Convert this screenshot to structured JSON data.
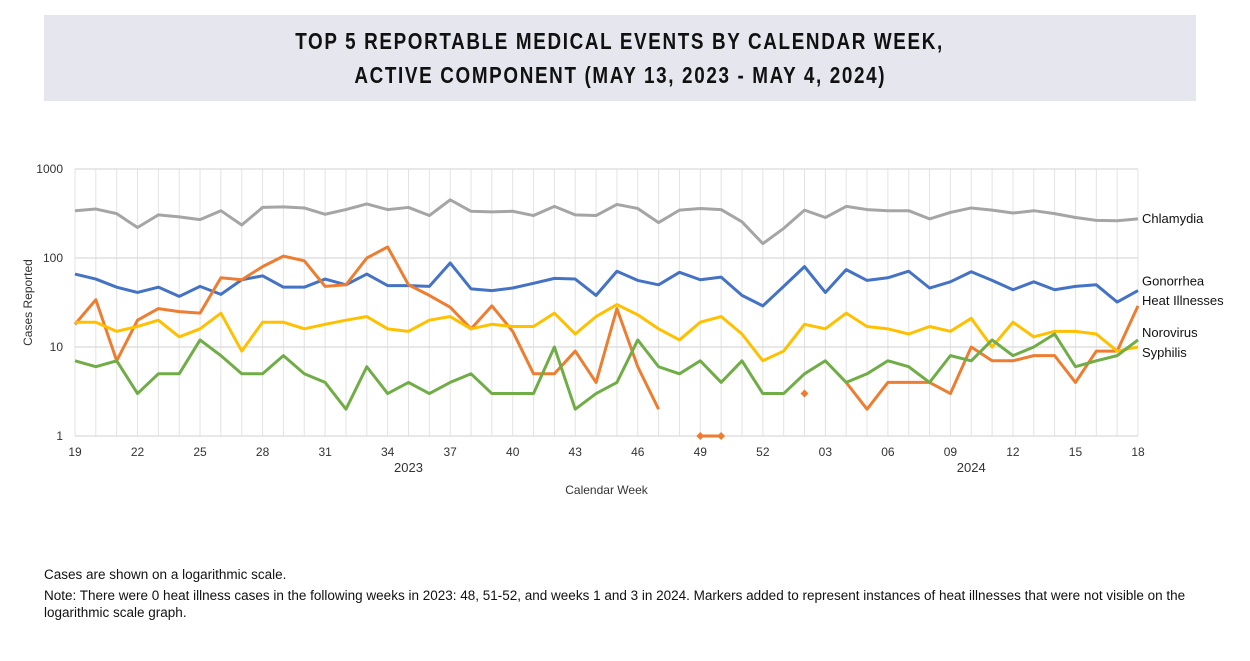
{
  "title": {
    "line1": "TOP 5 REPORTABLE MEDICAL EVENTS BY CALENDAR WEEK,",
    "line2": "ACTIVE COMPONENT (MAY 13, 2023 - MAY 4, 2024)"
  },
  "notes": {
    "scale": "Cases are shown on a logarithmic scale.",
    "zero": "Note: There were 0 heat illness cases in the following weeks in 2023: 48, 51-52, and weeks 1 and 3 in 2024. Markers added to represent instances of heat illnesses that were not visible on the logarithmic scale graph."
  },
  "chart_data": {
    "type": "line",
    "xlabel": "Calendar Week",
    "ylabel": "Cases Reported",
    "yscale": "log",
    "ylim": [
      1,
      1000
    ],
    "yticks": [
      "1",
      "10",
      "100",
      "1000"
    ],
    "grid": true,
    "legend": "right, labels at line ends",
    "weeks": [
      "19",
      "20",
      "21",
      "22",
      "23",
      "24",
      "25",
      "26",
      "27",
      "28",
      "29",
      "30",
      "31",
      "32",
      "33",
      "34",
      "35",
      "36",
      "37",
      "38",
      "39",
      "40",
      "41",
      "42",
      "43",
      "44",
      "45",
      "46",
      "47",
      "48",
      "49",
      "50",
      "51",
      "52",
      "01",
      "02",
      "03",
      "04",
      "05",
      "06",
      "07",
      "08",
      "09",
      "10",
      "11",
      "12",
      "13",
      "14",
      "15",
      "16",
      "17",
      "18"
    ],
    "xtick_labels": [
      "19",
      "22",
      "25",
      "28",
      "31",
      "34",
      "37",
      "40",
      "43",
      "46",
      "49",
      "52",
      "03",
      "06",
      "09",
      "12",
      "15",
      "18"
    ],
    "year_labels": [
      {
        "label": "2023",
        "week": "35"
      },
      {
        "label": "2024",
        "week": "10"
      }
    ],
    "series": [
      {
        "name": "Chlamydia",
        "color": "#a5a5a5",
        "values": [
          340,
          355,
          315,
          220,
          305,
          290,
          270,
          340,
          235,
          370,
          375,
          365,
          310,
          350,
          405,
          350,
          370,
          300,
          450,
          335,
          330,
          335,
          300,
          380,
          305,
          300,
          400,
          360,
          250,
          345,
          360,
          350,
          255,
          145,
          215,
          345,
          285,
          380,
          350,
          340,
          340,
          275,
          325,
          365,
          345,
          320,
          340,
          315,
          285,
          265,
          262,
          275
        ]
      },
      {
        "name": "Gonorrhea",
        "color": "#4472c4",
        "values": [
          66,
          58,
          47,
          41,
          47,
          37,
          48,
          39,
          57,
          63,
          47,
          47,
          58,
          50,
          66,
          49,
          49,
          48,
          88,
          45,
          43,
          46,
          52,
          59,
          58,
          38,
          71,
          56,
          50,
          69,
          57,
          61,
          38,
          29,
          48,
          80,
          41,
          74,
          56,
          60,
          71,
          46,
          54,
          70,
          56,
          44,
          54,
          44,
          48,
          50,
          32,
          43
        ]
      },
      {
        "name": "Heat Illnesses",
        "color": "#ed7d31",
        "values": [
          18,
          34,
          7,
          20,
          27,
          25,
          24,
          60,
          57,
          80,
          105,
          93,
          48,
          50,
          100,
          133,
          50,
          38,
          28,
          16,
          29,
          15,
          5,
          5,
          9,
          4,
          27,
          6,
          2,
          null,
          1,
          1,
          null,
          null,
          null,
          3,
          null,
          4,
          2,
          4,
          4,
          4,
          3,
          10,
          7,
          7,
          8,
          8,
          4,
          9,
          9,
          29
        ],
        "markers": [
          "49",
          "50",
          "02"
        ]
      },
      {
        "name": "Norovirus",
        "color": "#ffc000",
        "values": [
          19,
          19,
          15,
          17,
          20,
          13,
          16,
          24,
          9,
          19,
          19,
          16,
          18,
          20,
          22,
          16,
          15,
          20,
          22,
          16,
          18,
          17,
          17,
          24,
          14,
          22,
          30,
          23,
          16,
          12,
          19,
          22,
          14,
          7,
          9,
          18,
          16,
          24,
          17,
          16,
          14,
          17,
          15,
          21,
          10,
          19,
          13,
          15,
          15,
          14,
          9,
          10
        ]
      },
      {
        "name": "Syphilis",
        "color": "#70ad47",
        "values": [
          7,
          6,
          7,
          3,
          5,
          5,
          12,
          8,
          5,
          5,
          8,
          5,
          4,
          2,
          6,
          3,
          4,
          3,
          4,
          5,
          3,
          3,
          3,
          10,
          2,
          3,
          4,
          12,
          6,
          5,
          7,
          4,
          7,
          3,
          3,
          5,
          7,
          4,
          5,
          7,
          6,
          4,
          8,
          7,
          12,
          8,
          10,
          14,
          6,
          7,
          8,
          12
        ]
      }
    ]
  }
}
